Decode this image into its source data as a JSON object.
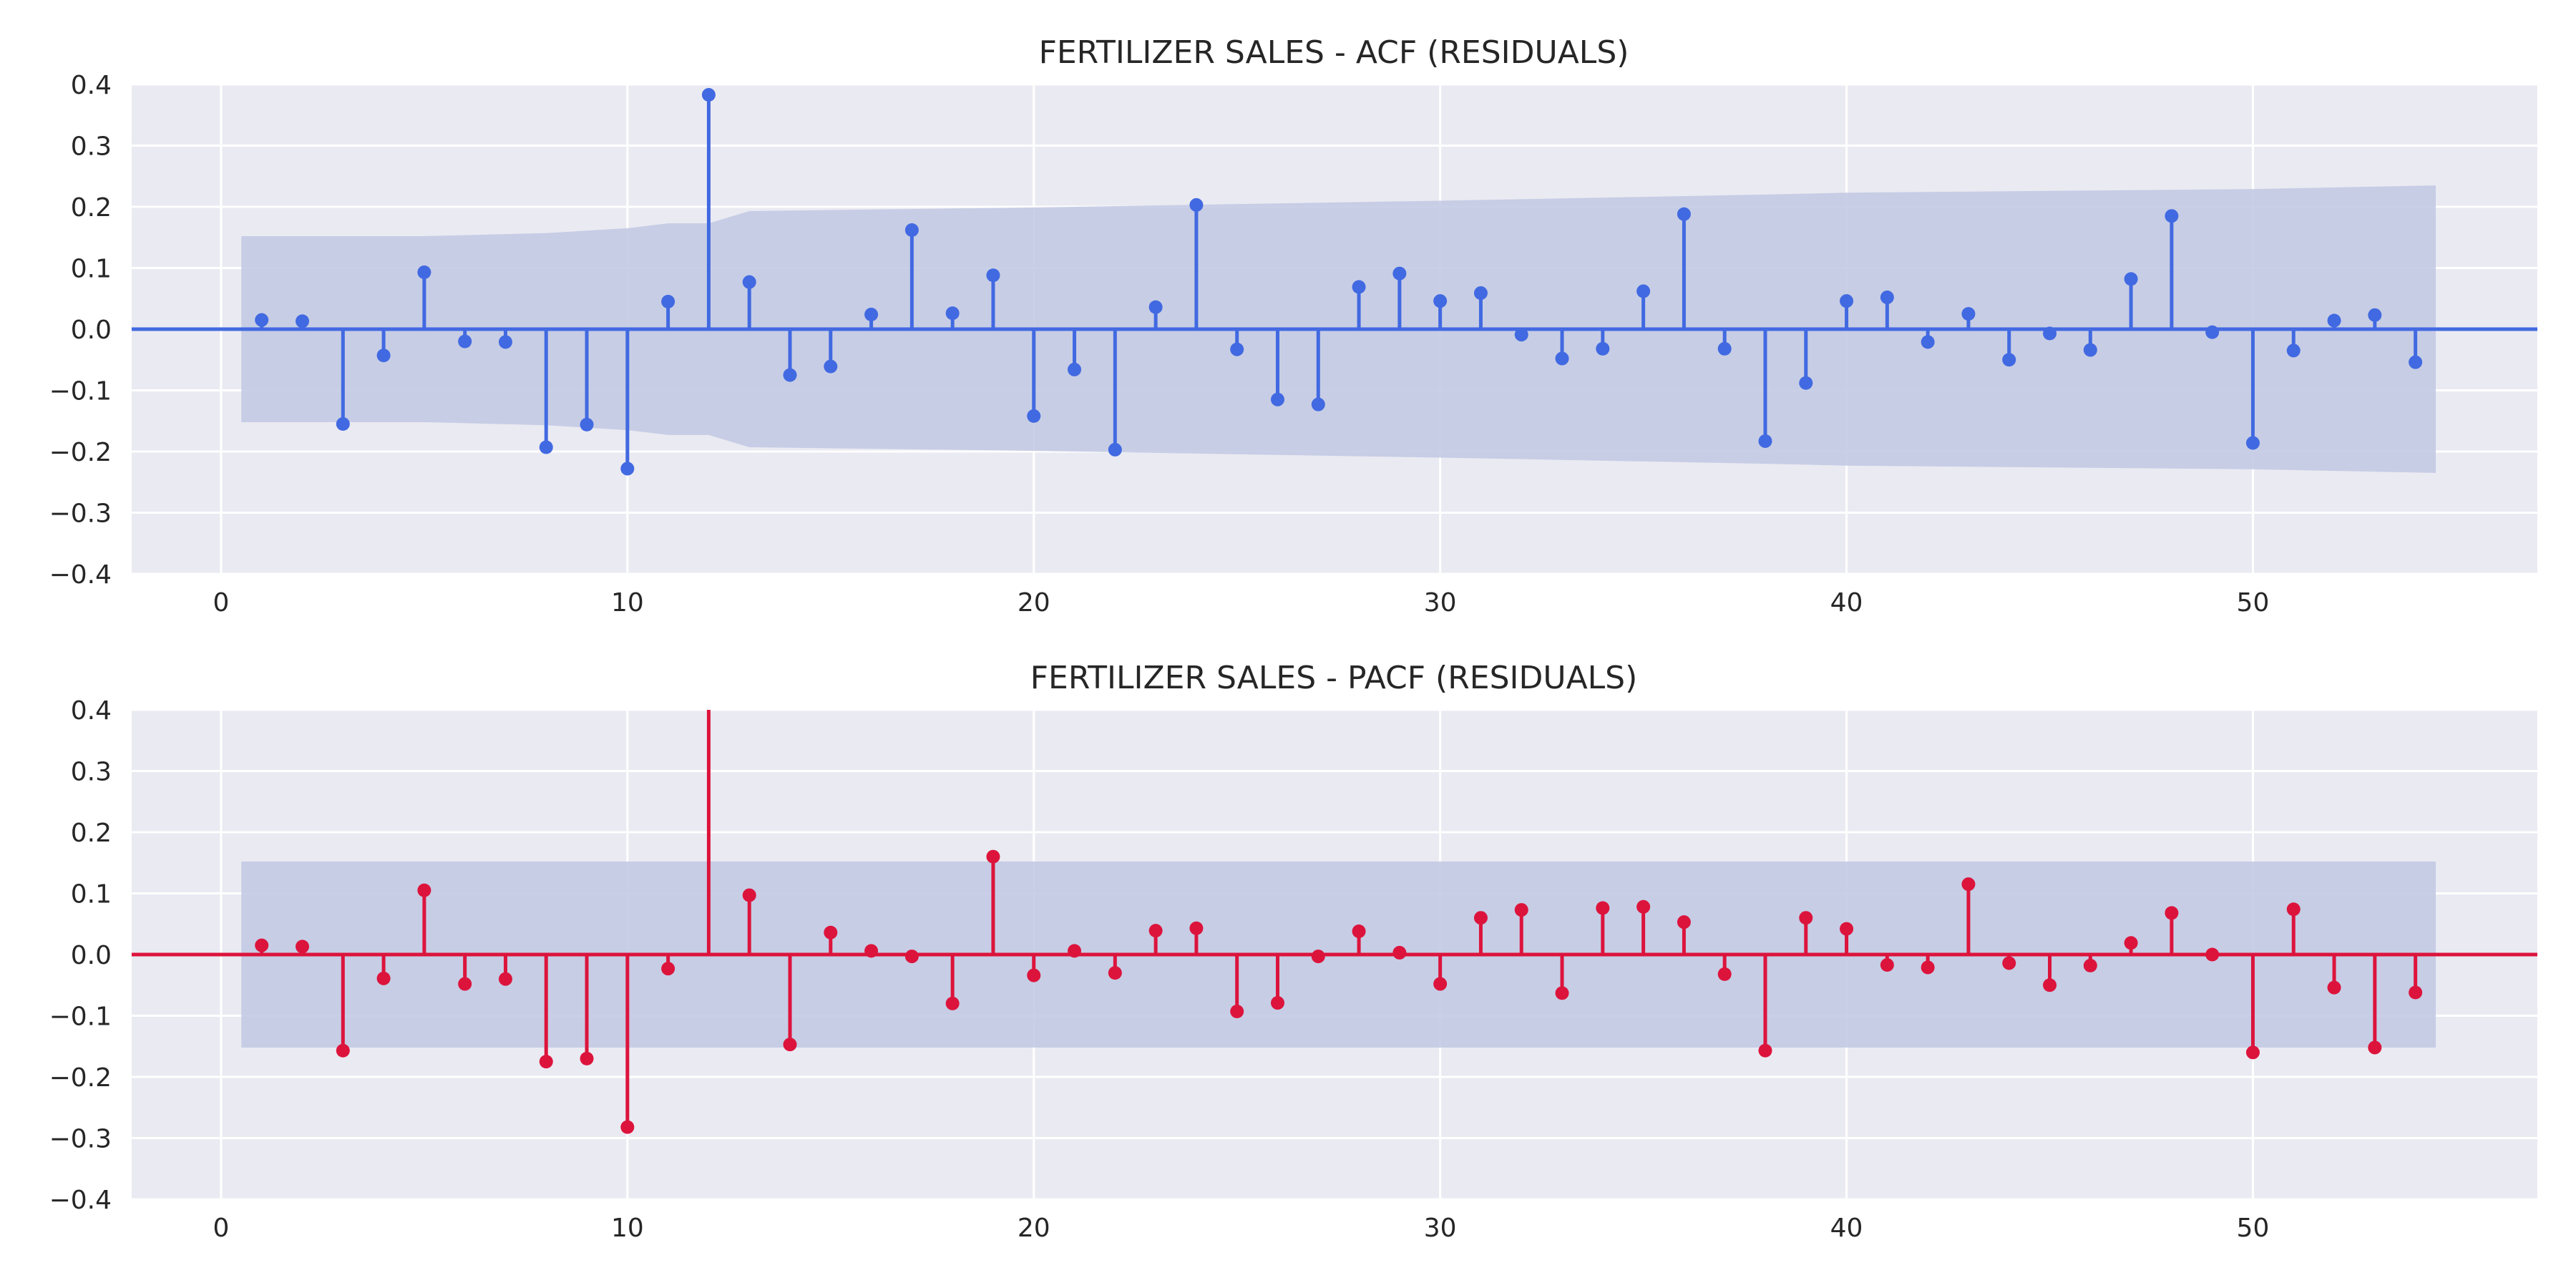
{
  "chart_data": [
    {
      "type": "stem",
      "title": "FERTILIZER SALES - ACF (RESIDUALS)",
      "xlabel": "",
      "ylabel": "",
      "xlim": [
        -2.2,
        57
      ],
      "ylim": [
        -0.4,
        0.4
      ],
      "x_ticks": [
        0,
        10,
        20,
        30,
        40,
        50
      ],
      "y_ticks": [
        -0.4,
        -0.3,
        -0.2,
        -0.1,
        0.0,
        0.1,
        0.2,
        0.3,
        0.4
      ],
      "grid": true,
      "color": "#4169e1",
      "band_color": "#c3cae3",
      "x": [
        1,
        2,
        3,
        4,
        5,
        6,
        7,
        8,
        9,
        10,
        11,
        12,
        13,
        14,
        15,
        16,
        17,
        18,
        19,
        20,
        21,
        22,
        23,
        24,
        25,
        26,
        27,
        28,
        29,
        30,
        31,
        32,
        33,
        34,
        35,
        36,
        37,
        38,
        39,
        40,
        41,
        42,
        43,
        44,
        45,
        46,
        47,
        48,
        49,
        50,
        51,
        52,
        53,
        54
      ],
      "values": [
        0.015,
        0.013,
        -0.155,
        -0.043,
        0.093,
        -0.02,
        -0.021,
        -0.193,
        -0.156,
        -0.228,
        0.045,
        0.383,
        0.077,
        -0.075,
        -0.061,
        0.024,
        0.162,
        0.026,
        0.088,
        -0.142,
        -0.066,
        -0.197,
        0.036,
        0.203,
        -0.033,
        -0.115,
        -0.123,
        0.069,
        0.091,
        0.046,
        0.059,
        -0.009,
        -0.048,
        -0.032,
        0.062,
        0.188,
        -0.032,
        -0.183,
        -0.088,
        0.046,
        0.052,
        -0.021,
        0.025,
        -0.05,
        -0.007,
        -0.034,
        0.082,
        0.185,
        -0.005,
        -0.186,
        -0.035,
        0.014,
        0.023,
        -0.054
      ],
      "conf_x": [
        0.5,
        5,
        8,
        10,
        11,
        12,
        13,
        20,
        30,
        38,
        40,
        50,
        54.5
      ],
      "conf_upper": [
        0.152,
        0.152,
        0.157,
        0.165,
        0.173,
        0.173,
        0.193,
        0.199,
        0.21,
        0.22,
        0.223,
        0.229,
        0.235
      ]
    },
    {
      "type": "stem",
      "title": "FERTILIZER SALES - PACF (RESIDUALS)",
      "xlabel": "",
      "ylabel": "",
      "xlim": [
        -2.2,
        57
      ],
      "ylim": [
        -0.4,
        0.4
      ],
      "x_ticks": [
        0,
        10,
        20,
        30,
        40,
        50
      ],
      "y_ticks": [
        -0.4,
        -0.3,
        -0.2,
        -0.1,
        0.0,
        0.1,
        0.2,
        0.3,
        0.4
      ],
      "grid": true,
      "color": "#dc143c",
      "band_color": "#c3cae3",
      "x": [
        1,
        2,
        3,
        4,
        5,
        6,
        7,
        8,
        9,
        10,
        11,
        12,
        13,
        14,
        15,
        16,
        17,
        18,
        19,
        20,
        21,
        22,
        23,
        24,
        25,
        26,
        27,
        28,
        29,
        30,
        31,
        32,
        33,
        34,
        35,
        36,
        37,
        38,
        39,
        40,
        41,
        42,
        43,
        44,
        45,
        46,
        47,
        48,
        49,
        50,
        51,
        52,
        53,
        54
      ],
      "values": [
        0.015,
        0.013,
        -0.157,
        -0.039,
        0.105,
        -0.048,
        -0.04,
        -0.175,
        -0.17,
        -0.282,
        -0.023,
        0.42,
        0.097,
        -0.147,
        0.036,
        0.006,
        -0.003,
        -0.08,
        0.16,
        -0.034,
        0.006,
        -0.03,
        0.039,
        0.043,
        -0.093,
        -0.079,
        -0.003,
        0.038,
        0.003,
        -0.048,
        0.06,
        0.073,
        -0.063,
        0.076,
        0.078,
        0.053,
        -0.032,
        -0.157,
        0.06,
        0.042,
        -0.017,
        -0.021,
        0.115,
        -0.014,
        -0.05,
        -0.018,
        0.019,
        0.068,
        0.0,
        -0.16,
        0.074,
        -0.054,
        -0.152,
        -0.062
      ],
      "conf_x": [
        0.5,
        54.5
      ],
      "conf_upper": [
        0.152,
        0.152
      ]
    }
  ]
}
